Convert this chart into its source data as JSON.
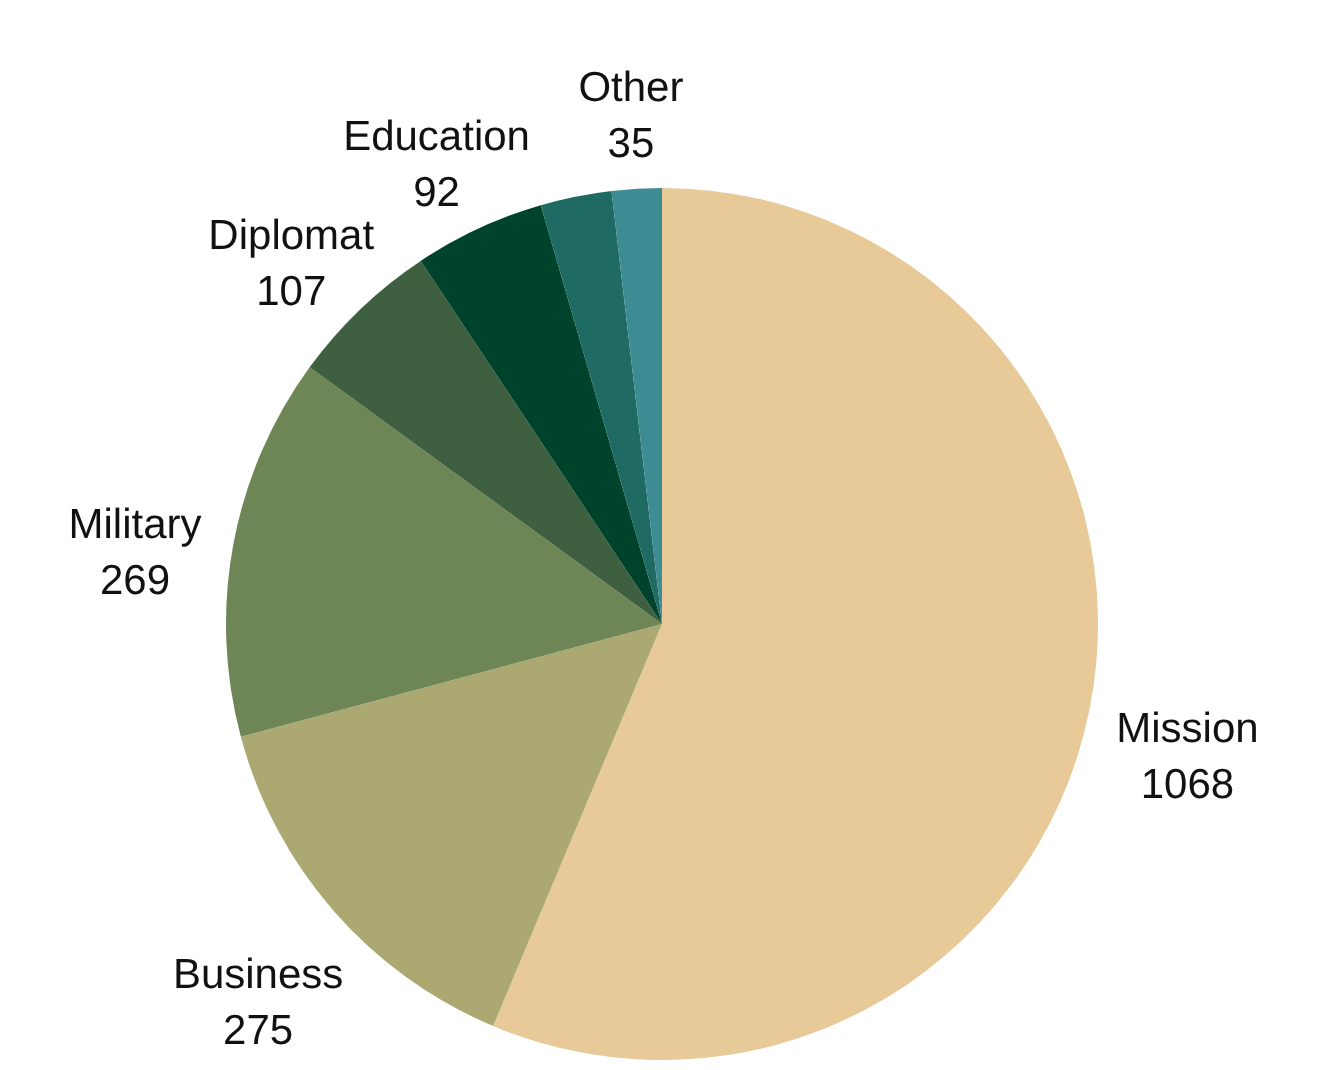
{
  "chart_data": {
    "type": "pie",
    "categories": [
      "Mission",
      "Business",
      "Military",
      "Diplomat",
      "Education",
      null,
      "Other"
    ],
    "values": [
      1068,
      275,
      269,
      107,
      92,
      50,
      35
    ],
    "value_labels": [
      "1068",
      "275",
      "269",
      "107",
      "92",
      null,
      "35"
    ],
    "colors": [
      "#e8c998",
      "#aba872",
      "#6e8655",
      "#3f6040",
      "#00432c",
      "#1f6a62",
      "#3d8c93"
    ]
  }
}
